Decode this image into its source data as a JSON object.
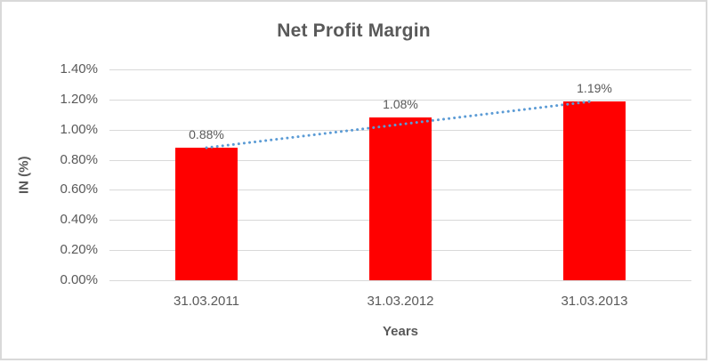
{
  "chart_data": {
    "type": "bar",
    "title": "Net Profit Margin",
    "xlabel": "Years",
    "ylabel": "IN (%)",
    "categories": [
      "31.03.2011",
      "31.03.2012",
      "31.03.2013"
    ],
    "values": [
      0.88,
      1.08,
      1.19
    ],
    "data_labels": [
      "0.88%",
      "1.08%",
      "1.19%"
    ],
    "y_ticks": [
      {
        "label": "0.00%",
        "value": 0.0
      },
      {
        "label": "0.20%",
        "value": 0.2
      },
      {
        "label": "0.40%",
        "value": 0.4
      },
      {
        "label": "0.60%",
        "value": 0.6
      },
      {
        "label": "0.80%",
        "value": 0.8
      },
      {
        "label": "1.00%",
        "value": 1.0
      },
      {
        "label": "1.20%",
        "value": 1.2
      },
      {
        "label": "1.40%",
        "value": 1.4
      }
    ],
    "ylim": [
      0,
      1.4
    ],
    "grid": true,
    "legend": "none",
    "trendline": {
      "type": "linear",
      "style": "dotted",
      "start_value": 0.88,
      "end_value": 1.19
    },
    "colors": {
      "bar": "#FF0000",
      "trendline": "#5B9BD5",
      "text": "#595959",
      "gridline": "#D9D9D9",
      "frame_border": "#D9D9D9",
      "background": "#FFFFFF"
    }
  }
}
